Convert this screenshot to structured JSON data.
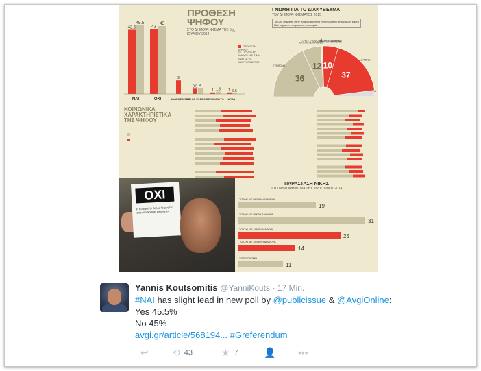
{
  "infographic": {
    "title": "ΠΡΟΘΕΣΗ ΨΗΦΟΥ",
    "subtitle": "ΣΤΟ ΔΗΜΟΨΗΦΙΣΜΑ ΤΗΣ 5ης ΙΟΥΛΙΟΥ 2014",
    "legend": [
      "ΠΡΟΘΕΣΗ ΨΗΦΟΥ",
      "ΠΡΟΘΕΣΗ ΨΗΦΟΥ ΜΕ ΤΙΜΗ ΑΝΑΓΩΓΗΣ ΑΔΙΕΥΚΡΙΝΙΣΤΩΝ"
    ],
    "colors": {
      "red": "#e63b2e",
      "beige": "#c9c2a3",
      "background": "#efe9cf"
    },
    "opinion_title": "ΓΝΩΜΗ ΓΙΑ ΤΟ ΔΙΑΚΥΒΕΥΜΑ",
    "opinion_subtitle": "ΤΟΥ ΔΗΜΟΨΗΦΙΣΜΑΤΟΣ 2015",
    "opinion_note": "Το ΟΧΙ σημαίνει στην πραγματικότητα «αποχώρηση από ευρώ» και το ΝΑΙ σημαίνει «παραμονή στο ευρώ»",
    "demographics_title": "ΚΟΙΝΩΝΙΚΑ ΧΑΡΑΚΤΗΡΙΣΤΙΚΑ ΤΗΣ ΨΗΦΟΥ",
    "victory_title": "ΠΑΡΑΣΤΑΣΗ ΝΙΚΗΣ",
    "victory_subtitle": "ΣΤΟ ΔΗΜΟΨΗΦΙΣΜΑ ΤΗΣ 5ης ΙΟΥΛΙΟΥ 2014",
    "sign_text": "OXI",
    "sign_small": "Η Κυριακή Ο Βόλος Το μεγάλο στην παγκόσμια οικονομία"
  },
  "chart_data": [
    {
      "type": "bar",
      "categories": [
        "ΝΑΙ",
        "ΟΧΙ",
        "ΑΝΑΠΟΦΑΣΙΣΤΟΙ",
        "ΔΕΝ ΘΑ ΨΗΦΙΣΟΥΝ",
        "ΛΕΥΚΟ/ΑΚΥΡΟ",
        "ΔΓ/ΔΑ"
      ],
      "series": [
        {
          "name": "ΠΡΟΘΕΣΗ ΨΗΦΟΥ",
          "values": [
            42.5,
            43,
            9,
            3.5,
            1,
            1
          ]
        },
        {
          "name": "ΠΡΟΘΕΣΗ ΨΗΦΟΥ ΜΕ ΤΙΜΗ ΑΝΑΓΩΓΗΣ ΑΔΙΕΥΚΡΙΝΙΣΤΩΝ",
          "values": [
            45.5,
            45,
            null,
            4,
            1.5,
            0.5
          ]
        }
      ],
      "value_labels": [
        "42.5",
        "45.5",
        "43",
        "45",
        "9",
        "3.5",
        "4",
        "1",
        "1.5",
        "1",
        "0.5"
      ]
    },
    {
      "type": "pie",
      "labels": [
        "ΣΥΜΦΩΝΩ",
        "ΜΑΛΛΟΝ ΣΥΜΦΩΝΩ",
        "ΟΥΤΕ ΣΥΜΦΩΝΩ ΟΥΤΕ ΔΙΑΦΩΝΩ",
        "ΜΑΛΛΟΝ ΔΙΑΦΩΝΩ",
        "ΔΙΑΦΩΝΩ",
        "ΔΓ/ΔΑ"
      ],
      "values": [
        36,
        12,
        1,
        10,
        37,
        4
      ],
      "colors": [
        "#c9c2a3",
        "#c9c2a3",
        "#efe9cf",
        "#e63b2e",
        "#e63b2e",
        "#dddddd"
      ]
    },
    {
      "type": "bar",
      "orientation": "horizontal",
      "categories": [
        "ΤΟ ΝΑΙ ΜΕ ΜΕΓΑΛΗ ΔΙΑΦΟΡΑ",
        "ΤΟ ΝΑΙ ΜΕ ΜΙΚΡΗ ΔΙΑΦΟΡΑ",
        "ΤΟ ΟΧΙ ΜΕ ΜΙΚΡΗ ΔΙΑΦΟΡΑ",
        "ΤΟ ΟΧΙ ΜΕ ΜΕΓΑΛΗ ΔΙΑΦΟΡΑ",
        "ΧΩΡΙΣ ΓΝΩΜΗ"
      ],
      "values": [
        19,
        31,
        25,
        14,
        11
      ],
      "colors": [
        "#c9c2a3",
        "#c9c2a3",
        "#e63b2e",
        "#e63b2e",
        "#c9c2a3"
      ]
    }
  ],
  "tweet": {
    "name": "Yannis Koutsomitis",
    "handle": "@YanniKouts",
    "time": "· 17 Min.",
    "line1_hashtag": "#NAI",
    "line1_text": " has slight lead in new poll by ",
    "line1_mention1": "@publicissue",
    "line1_and": " & ",
    "line1_mention2": "@AvgiOnline",
    "line1_end": ":",
    "line2": "Yes 45.5%",
    "line3": "No 45%",
    "link": "avgi.gr/article/568194...",
    "hashtag": "#Greferendum",
    "actions": {
      "reply_icon": "reply-icon",
      "retweet_icon": "retweet-icon",
      "retweet_count": "43",
      "favorite_icon": "star-icon",
      "favorite_count": "7",
      "follow_icon": "follow-icon",
      "more_icon": "more-icon"
    }
  }
}
